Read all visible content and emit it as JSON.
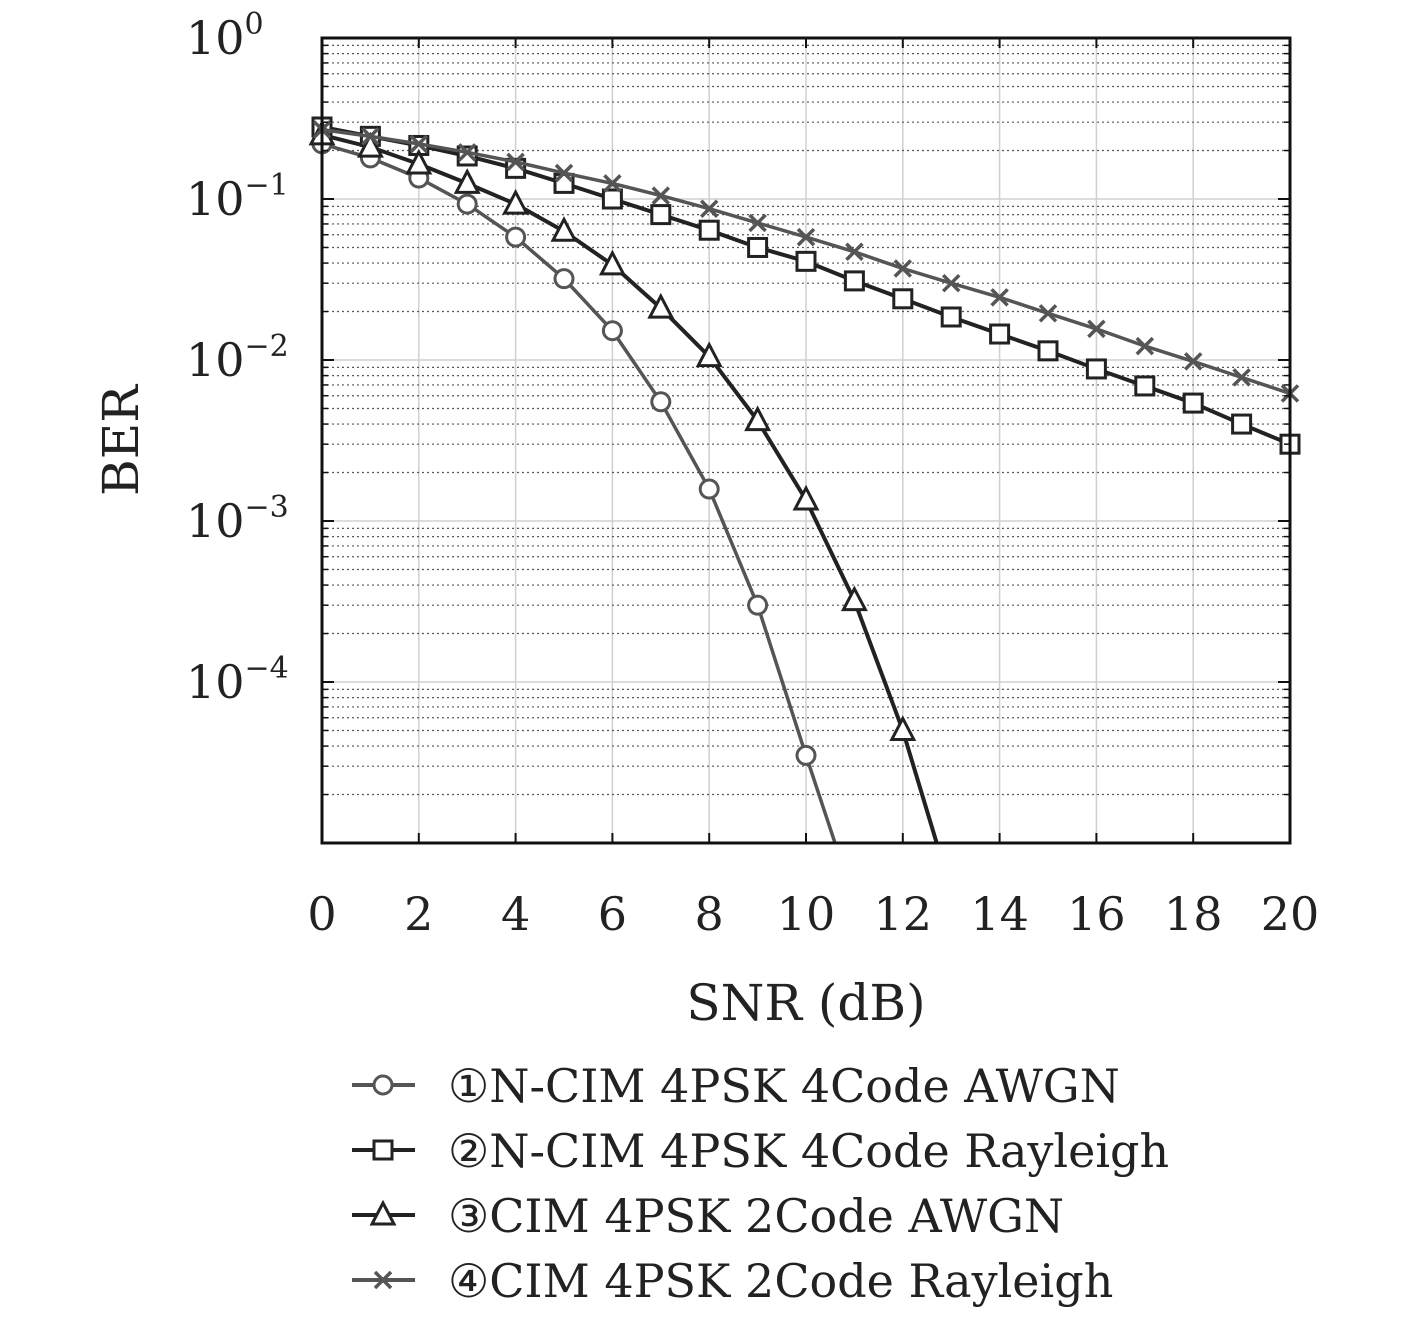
{
  "chart_data": {
    "type": "line",
    "xlabel": "SNR (dB)",
    "ylabel": "BER",
    "xlim": [
      0,
      20
    ],
    "ylim": [
      1e-05,
      1
    ],
    "yscale": "log",
    "grid": true,
    "x_ticks": [
      0,
      2,
      4,
      6,
      8,
      10,
      12,
      14,
      16,
      18,
      20
    ],
    "y_ticks": [
      {
        "value": 1,
        "base": "10",
        "exp": "0"
      },
      {
        "value": 0.1,
        "base": "10",
        "exp": "−1"
      },
      {
        "value": 0.01,
        "base": "10",
        "exp": "−2"
      },
      {
        "value": 0.001,
        "base": "10",
        "exp": "−3"
      },
      {
        "value": 0.0001,
        "base": "10",
        "exp": "−4"
      }
    ],
    "legend_position": "bottom",
    "series": [
      {
        "name": "①N-CIM 4PSK 4Code AWGN",
        "marker": "circle",
        "color": "#555555",
        "x": [
          0,
          1,
          2,
          3,
          4,
          5,
          6,
          7,
          8,
          9,
          10,
          10.6
        ],
        "y": [
          0.22,
          0.18,
          0.135,
          0.093,
          0.058,
          0.032,
          0.0152,
          0.0055,
          0.00158,
          0.0003,
          3.5e-05,
          1e-05
        ]
      },
      {
        "name": "②N-CIM 4PSK 4Code Rayleigh",
        "marker": "square",
        "color": "#222222",
        "x": [
          0,
          1,
          2,
          3,
          4,
          5,
          6,
          7,
          8,
          9,
          10,
          11,
          12,
          13,
          14,
          15,
          16,
          17,
          18,
          19,
          20
        ],
        "y": [
          0.28,
          0.245,
          0.215,
          0.185,
          0.155,
          0.125,
          0.1,
          0.08,
          0.064,
          0.05,
          0.041,
          0.031,
          0.024,
          0.0185,
          0.0145,
          0.0114,
          0.0088,
          0.0069,
          0.0054,
          0.004,
          0.003
        ]
      },
      {
        "name": "③CIM 4PSK 2Code AWGN",
        "marker": "triangle",
        "color": "#222222",
        "x": [
          0,
          1,
          2,
          3,
          4,
          5,
          6,
          7,
          8,
          9,
          10,
          11,
          12,
          12.7
        ],
        "y": [
          0.25,
          0.21,
          0.165,
          0.125,
          0.093,
          0.063,
          0.039,
          0.021,
          0.0105,
          0.0042,
          0.00135,
          0.00032,
          5e-05,
          1e-05
        ]
      },
      {
        "name": "④CIM 4PSK 2Code Rayleigh",
        "marker": "cross",
        "color": "#555555",
        "x": [
          0,
          1,
          2,
          3,
          4,
          5,
          6,
          7,
          8,
          9,
          10,
          11,
          12,
          13,
          14,
          15,
          16,
          17,
          18,
          19,
          20
        ],
        "y": [
          0.27,
          0.245,
          0.22,
          0.195,
          0.17,
          0.145,
          0.125,
          0.105,
          0.087,
          0.071,
          0.058,
          0.047,
          0.037,
          0.03,
          0.0245,
          0.0195,
          0.0156,
          0.0122,
          0.0098,
          0.0078,
          0.0062
        ]
      }
    ]
  }
}
